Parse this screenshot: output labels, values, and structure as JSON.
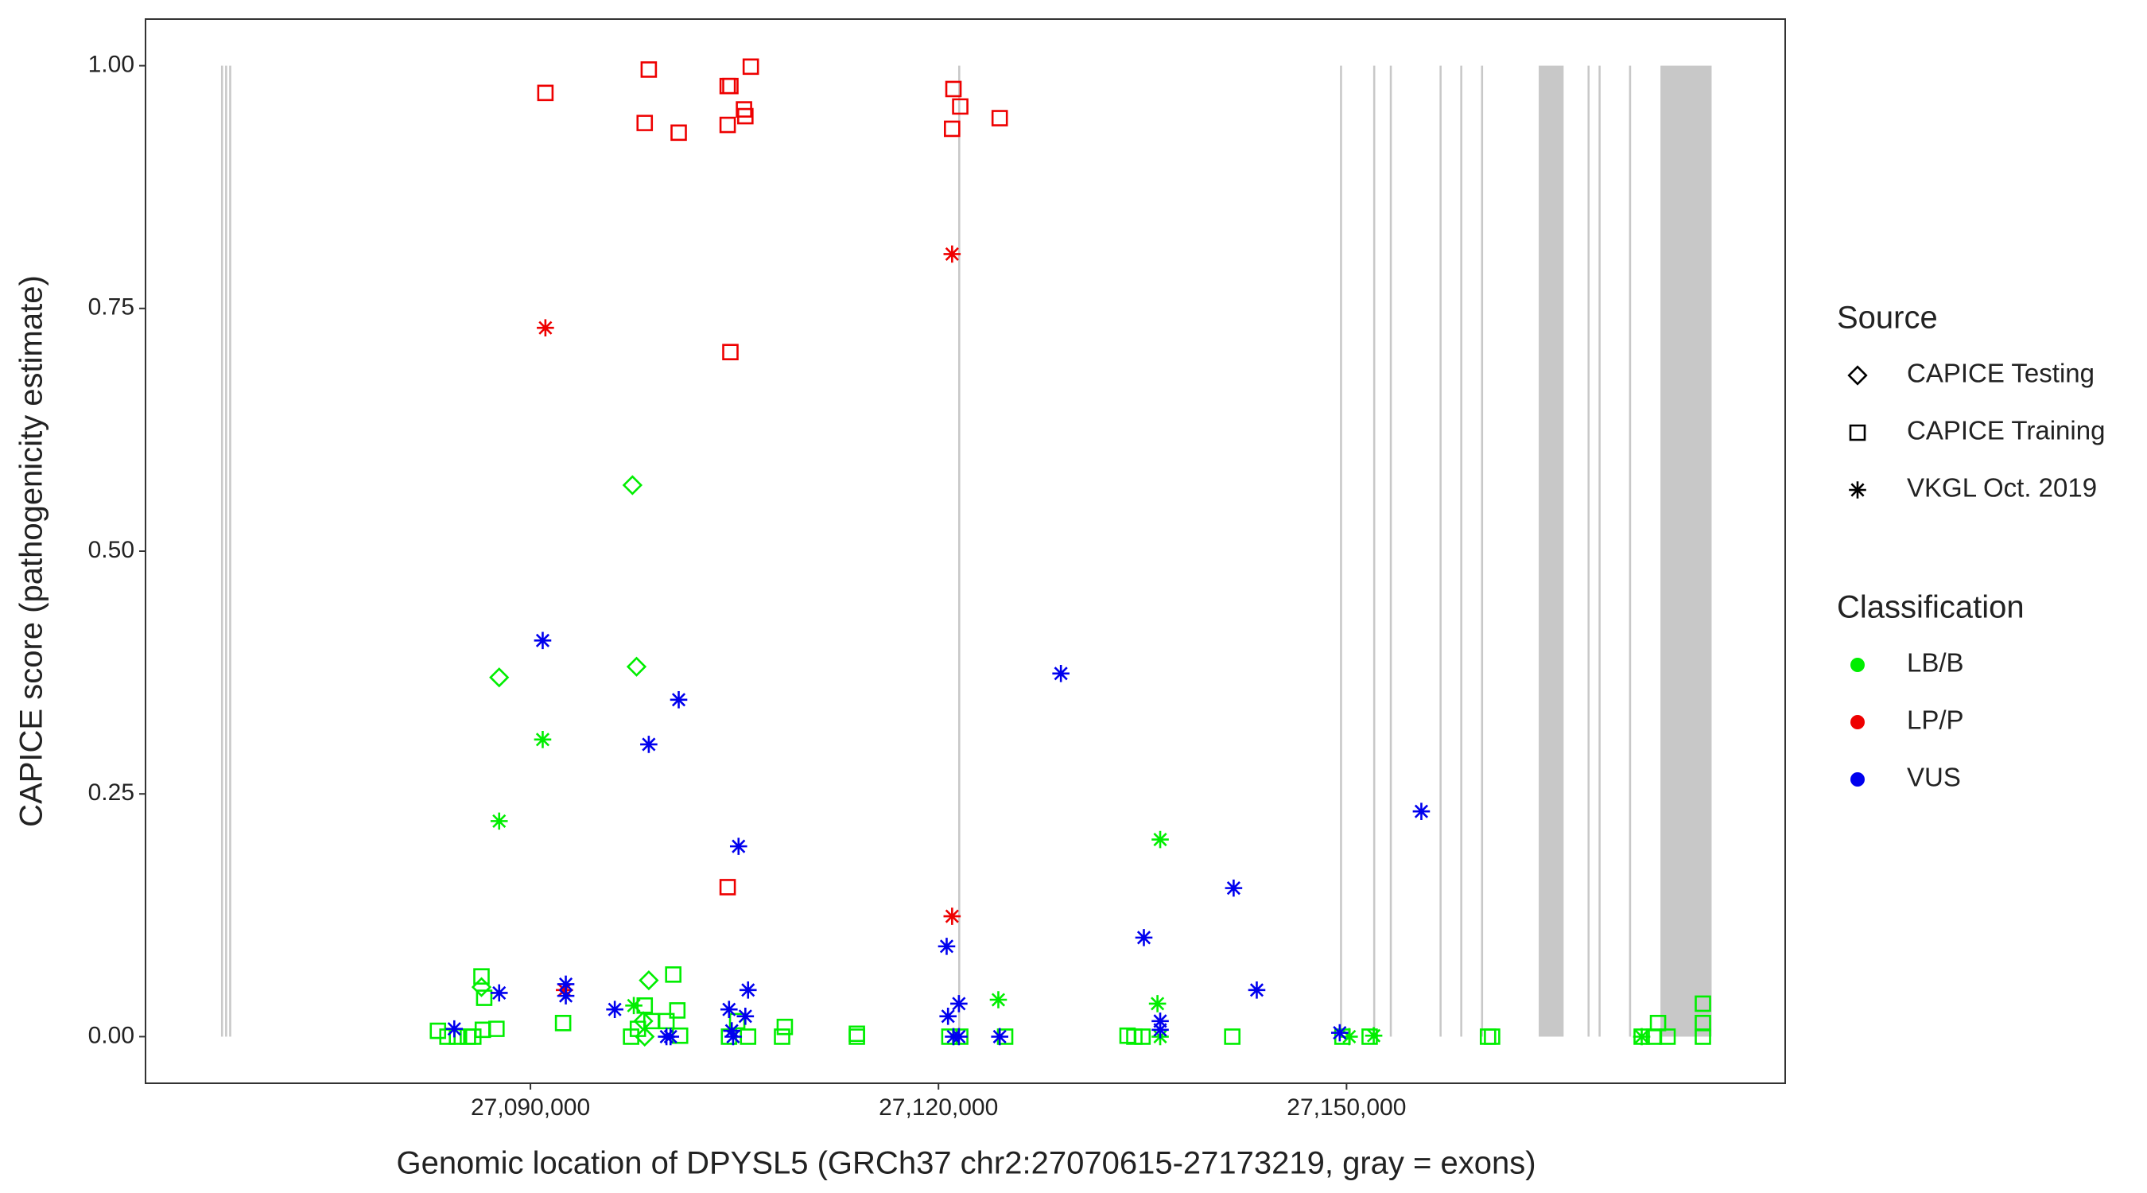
{
  "chart_data": {
    "type": "scatter",
    "x_label": "Genomic location of DPYSL5 (GRCh37 chr2:27070615-27173219, gray = exons)",
    "y_label": "CAPICE score (pathogenicity estimate)",
    "xlim": [
      27061700,
      27182250
    ],
    "ylim": [
      -0.048,
      1.048
    ],
    "xticks": [
      {
        "value": 27090000,
        "label": "27,090,000"
      },
      {
        "value": 27120000,
        "label": "27,120,000"
      },
      {
        "value": 27150000,
        "label": "27,150,000"
      }
    ],
    "yticks": [
      {
        "value": 0,
        "label": "0.00"
      },
      {
        "value": 0.25,
        "label": "0.25"
      },
      {
        "value": 0.5,
        "label": "0.50"
      },
      {
        "value": 0.75,
        "label": "0.75"
      },
      {
        "value": 1,
        "label": "1.00"
      }
    ],
    "grid": false,
    "exon_color": "#c8c8c8",
    "exons": [
      {
        "start": 27067250,
        "end": 27067400
      },
      {
        "start": 27067550,
        "end": 27067700
      },
      {
        "start": 27067850,
        "end": 27068000
      },
      {
        "start": 27121450,
        "end": 27121600
      },
      {
        "start": 27149520,
        "end": 27149670
      },
      {
        "start": 27151960,
        "end": 27152110
      },
      {
        "start": 27153180,
        "end": 27153330
      },
      {
        "start": 27156840,
        "end": 27156990
      },
      {
        "start": 27158360,
        "end": 27158510
      },
      {
        "start": 27159890,
        "end": 27160040
      },
      {
        "start": 27164130,
        "end": 27165960
      },
      {
        "start": 27167720,
        "end": 27167870
      },
      {
        "start": 27168530,
        "end": 27168680
      },
      {
        "start": 27170770,
        "end": 27170920
      },
      {
        "start": 27173080,
        "end": 27176840
      }
    ],
    "legend": {
      "source_title": "Source",
      "sources": [
        {
          "name": "CAPICE Testing",
          "shape": "diamond"
        },
        {
          "name": "CAPICE Training",
          "shape": "square"
        },
        {
          "name": "VKGL Oct. 2019",
          "shape": "star"
        }
      ],
      "classification_title": "Classification",
      "classifications": [
        {
          "name": "LB/B",
          "color": "#00ee00"
        },
        {
          "name": "LP/P",
          "color": "#ee0000"
        },
        {
          "name": "VUS",
          "color": "#0000ee"
        }
      ]
    },
    "series": [
      {
        "source": "CAPICE Training",
        "classification": "LP/P",
        "x": [
          27091100,
          27098700,
          27098400,
          27100900,
          27104500,
          27104700,
          27106200,
          27105700,
          27105800,
          27104500,
          27121100,
          27121600,
          27121000,
          27124500,
          27104700,
          27104500
        ],
        "values": [
          0.972,
          0.996,
          0.941,
          0.931,
          0.979,
          0.979,
          0.999,
          0.955,
          0.948,
          0.939,
          0.976,
          0.958,
          0.935,
          0.946,
          0.705,
          0.154
        ]
      },
      {
        "source": "VKGL Oct. 2019",
        "classification": "LP/P",
        "x": [
          27091100,
          27121000,
          27121000,
          27092500
        ],
        "values": [
          0.73,
          0.806,
          0.124,
          0.048
        ]
      },
      {
        "source": "CAPICE Testing",
        "classification": "LB/B",
        "x": [
          27097500,
          27087700,
          27097800,
          27086400,
          27098700,
          27098300,
          27098400
        ],
        "values": [
          0.568,
          0.37,
          0.381,
          0.051,
          0.058,
          0.016,
          0
        ]
      },
      {
        "source": "CAPICE Training",
        "classification": "LB/B",
        "x": [
          27083200,
          27083900,
          27084600,
          27085400,
          27085800,
          27086400,
          27086600,
          27086500,
          27087500,
          27092400,
          27097400,
          27097900,
          27098400,
          27098900,
          27100500,
          27100800,
          27100000,
          27101000,
          27104600,
          27105200,
          27106000,
          27108700,
          27108500,
          27114000,
          27114000,
          27120800,
          27121600,
          27124900,
          27133900,
          27134400,
          27135000,
          27141600,
          27149700,
          27151700,
          27160400,
          27160700,
          27171700,
          27172600,
          27172900,
          27173600,
          27176200,
          27176200,
          27176200
        ],
        "values": [
          0.006,
          0,
          0,
          0,
          0,
          0.062,
          0.04,
          0.007,
          0.008,
          0.014,
          0,
          0.008,
          0.032,
          0.016,
          0.064,
          0.027,
          0.016,
          0.001,
          0,
          0.016,
          0,
          0.01,
          0,
          0.003,
          0,
          0,
          0,
          0,
          0.001,
          0,
          0,
          0,
          0,
          0,
          0,
          0,
          0,
          0,
          0.014,
          0,
          0.034,
          0.014,
          0
        ]
      },
      {
        "source": "VKGL Oct. 2019",
        "classification": "LB/B",
        "x": [
          27090900,
          27087700,
          27136300,
          27124400,
          27136100,
          27097600,
          27150200,
          27152000,
          27136300,
          27171700
        ],
        "values": [
          0.306,
          0.222,
          0.203,
          0.038,
          0.034,
          0.032,
          0,
          0.001,
          0,
          0
        ]
      },
      {
        "source": "VKGL Oct. 2019",
        "classification": "VUS",
        "x": [
          27090900,
          27098700,
          27100900,
          27105300,
          27129000,
          27155500,
          27141700,
          27135100,
          27143400,
          27120600,
          27121500,
          27120700,
          27084400,
          27087700,
          27092600,
          27092600,
          27096200,
          27106000,
          27104600,
          27105800,
          27104800,
          27100300,
          27100000,
          27104900,
          27136300,
          27136300,
          27121100,
          27121500,
          27124500,
          27149500
        ],
        "values": [
          0.408,
          0.301,
          0.347,
          0.196,
          0.374,
          0.232,
          0.153,
          0.102,
          0.048,
          0.093,
          0.034,
          0.021,
          0.008,
          0.045,
          0.054,
          0.042,
          0.028,
          0.048,
          0.028,
          0.021,
          0.006,
          0,
          0,
          0,
          0.016,
          0.007,
          0,
          0,
          0,
          0.004
        ]
      }
    ]
  }
}
